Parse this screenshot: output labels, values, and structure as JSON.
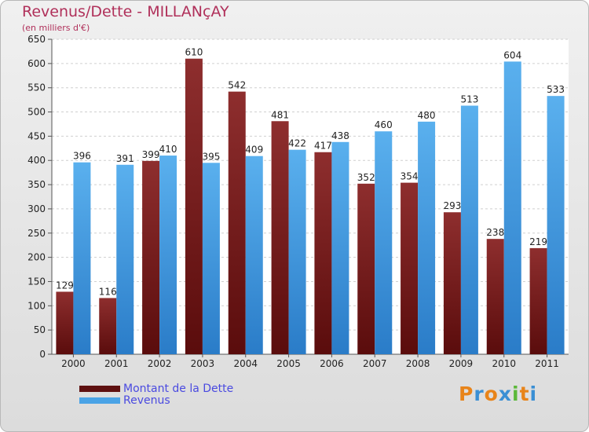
{
  "title": "Revenus/Dette - MILLANçAY",
  "subtitle": "(en milliers d'€)",
  "brand": {
    "letters": [
      "P",
      "r",
      "o",
      "x",
      "i",
      "t",
      "i"
    ],
    "colors": [
      "#e8841a",
      "#3a8fd4",
      "#e8841a",
      "#3a8fd4",
      "#5cb83a",
      "#e8841a",
      "#3a8fd4"
    ]
  },
  "chart_data": {
    "type": "bar",
    "categories": [
      "2000",
      "2001",
      "2002",
      "2003",
      "2004",
      "2005",
      "2006",
      "2007",
      "2008",
      "2009",
      "2010",
      "2011"
    ],
    "series": [
      {
        "name": "Montant de la Dette",
        "values": [
          129,
          116,
          399,
          610,
          542,
          481,
          417,
          352,
          354,
          293,
          238,
          219
        ],
        "color": "#7a2020"
      },
      {
        "name": "Revenus",
        "values": [
          396,
          391,
          410,
          395,
          409,
          422,
          438,
          460,
          480,
          513,
          604,
          533
        ],
        "color": "#4aa3e6"
      }
    ],
    "ylim": [
      0,
      650
    ],
    "yticks": [
      0,
      50,
      100,
      150,
      200,
      250,
      300,
      350,
      400,
      450,
      500,
      550,
      600,
      650
    ],
    "grid": true,
    "legend_position": "bottom-left"
  }
}
